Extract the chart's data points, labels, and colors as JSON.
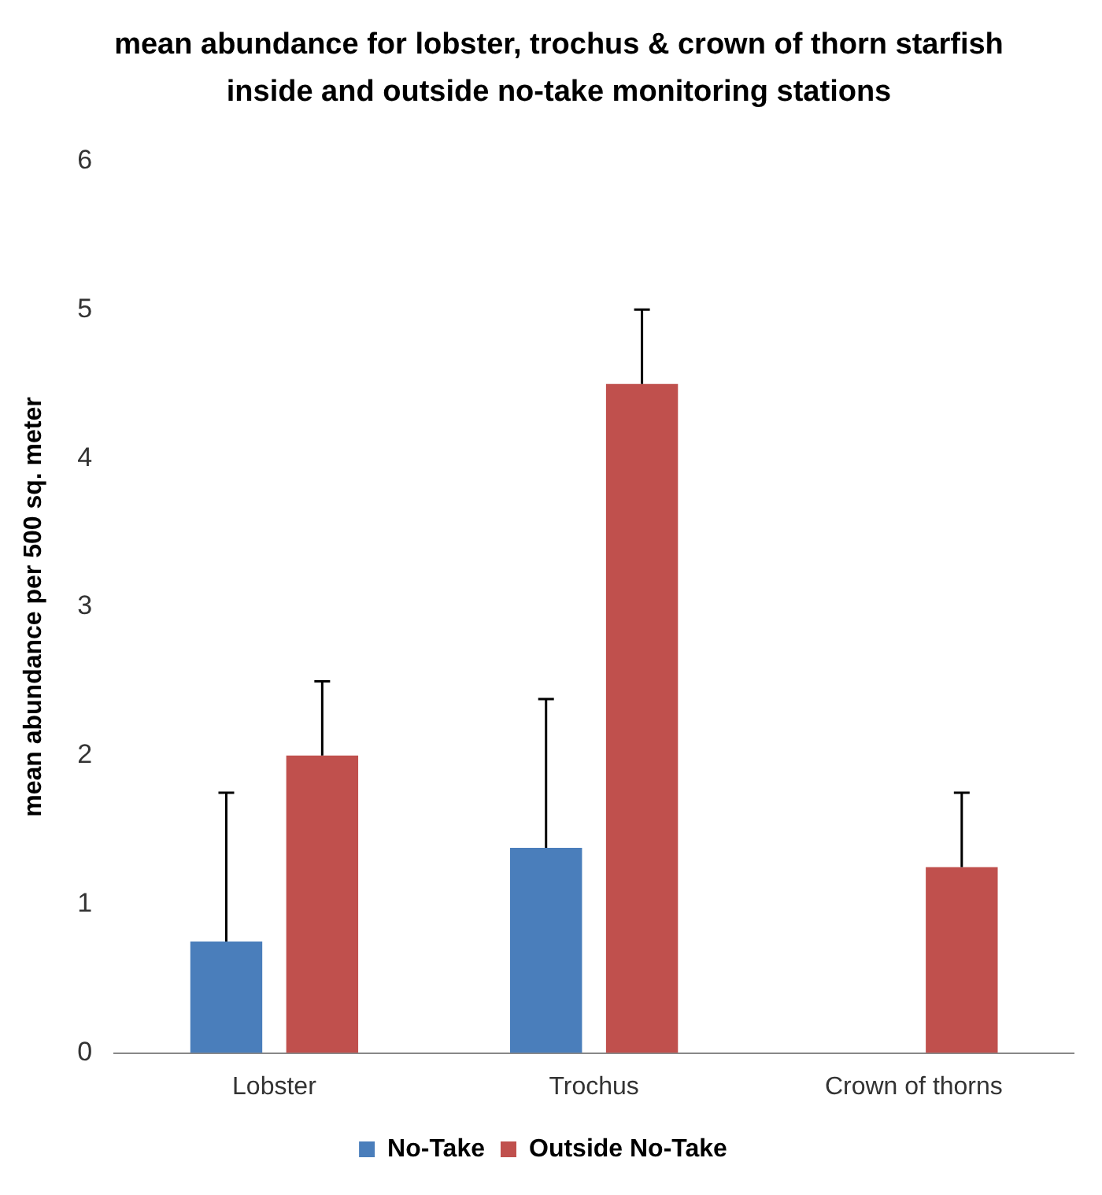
{
  "chart_data": {
    "type": "bar",
    "title": "mean abundance for lobster, trochus & crown of thorn starfish inside and outside no-take monitoring stations",
    "ylabel": "mean abundance per 500 sq. meter",
    "categories": [
      "Lobster",
      "Trochus",
      "Crown of thorns"
    ],
    "series": [
      {
        "name": "No-Take",
        "color": "#4a7ebb",
        "values": [
          0.75,
          1.38,
          0
        ],
        "errors": [
          [
            0.75,
            1.75
          ],
          [
            1.38,
            2.38
          ],
          null
        ]
      },
      {
        "name": "Outside No-Take",
        "color": "#c0504d",
        "values": [
          2.0,
          4.5,
          1.25
        ],
        "errors": [
          [
            2.0,
            2.5
          ],
          [
            4.5,
            5.0
          ],
          [
            1.25,
            1.75
          ]
        ]
      }
    ],
    "ylim": [
      0,
      6
    ],
    "yticks": [
      0,
      1,
      2,
      3,
      4,
      5,
      6
    ],
    "grid": false,
    "legend": "bottom"
  }
}
